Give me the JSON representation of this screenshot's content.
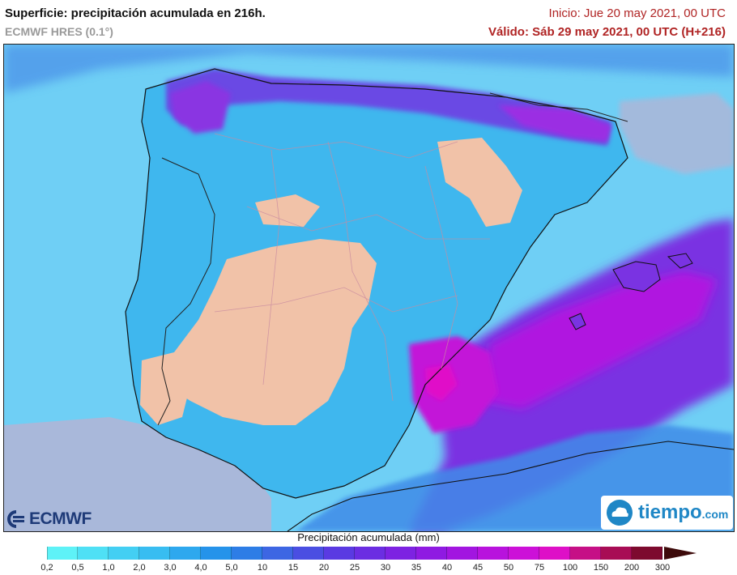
{
  "header": {
    "title": "Superficie: precipitación acumulada en 216h.",
    "model": "ECMWF HRES (0.1°)",
    "init": "Inicio: Jue 20 may 2021, 00 UTC",
    "valid": "Válido: Sáb 29 may 2021, 00 UTC (H+216)"
  },
  "logos": {
    "ecmwf": "ECMWF",
    "tiempo": "tiempo",
    "tiempo_suffix": ".com"
  },
  "legend": {
    "title": "Precipitación acumulada (mm)",
    "ticks": [
      "0,2",
      "0,5",
      "1,0",
      "2,0",
      "3,0",
      "4,0",
      "5,0",
      "10",
      "15",
      "20",
      "25",
      "30",
      "35",
      "40",
      "45",
      "50",
      "75",
      "100",
      "150",
      "200",
      "300"
    ],
    "colors": [
      "#5ef2f7",
      "#4fe0f5",
      "#43cff3",
      "#38bdf1",
      "#2ea8ee",
      "#2593ea",
      "#2d7de6",
      "#3d66e3",
      "#4a4ee2",
      "#5a3ae2",
      "#6b2de2",
      "#7d22e2",
      "#8f1ae2",
      "#a215e0",
      "#b812dd",
      "#cc10d8",
      "#de0fc7",
      "#c60f86",
      "#a80c55",
      "#7d0a2e"
    ],
    "arrow_color": "#3d0a0a"
  },
  "map": {
    "sea_color": "#6fcff5",
    "dry_land_color": "#f1c2a8",
    "low_sea_color": "#a9b8da"
  }
}
